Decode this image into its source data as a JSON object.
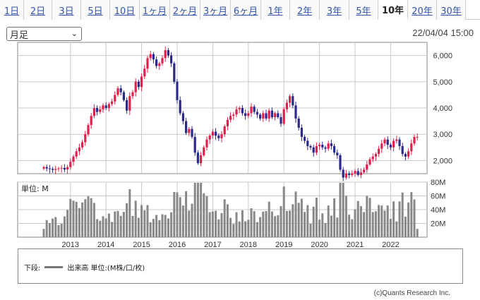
{
  "tabs": [
    {
      "label": "1日"
    },
    {
      "label": "2日"
    },
    {
      "label": "3日"
    },
    {
      "label": "5日"
    },
    {
      "label": "10日"
    },
    {
      "label": "1ヶ月"
    },
    {
      "label": "2ヶ月"
    },
    {
      "label": "3ヶ月"
    },
    {
      "label": "6ヶ月"
    },
    {
      "label": "1年"
    },
    {
      "label": "2年"
    },
    {
      "label": "3年"
    },
    {
      "label": "5年"
    },
    {
      "label": "10年"
    },
    {
      "label": "20年"
    },
    {
      "label": "30年"
    }
  ],
  "active_tab": "10年",
  "period_select": {
    "value": "月足"
  },
  "timestamp": "22/04/04 15:00",
  "legend": {
    "prefix": "下段:",
    "label": "出来高 単位:(M株/口/枚)"
  },
  "copyright": "(c)Quants Research Inc.",
  "colors": {
    "up": "#e0204c",
    "down": "#2a2a8c",
    "volume": "#888888",
    "grid": "#c8c8c8"
  },
  "chart_data": {
    "type": "candlestick",
    "x_tick_labels": [
      "2013",
      "2014",
      "2015",
      "2016",
      "2017",
      "2018",
      "2019",
      "2020",
      "2021",
      "2022"
    ],
    "price_axis": {
      "ticks": [
        "2,000",
        "3,000",
        "4,000",
        "5,000",
        "6,000"
      ],
      "ylim": [
        1500,
        6500
      ]
    },
    "volume_axis": {
      "unit_label": "単位: M",
      "ticks": [
        "20M",
        "40M",
        "60M",
        "80M"
      ],
      "ylim": [
        0,
        80
      ]
    },
    "start": "2012-04",
    "monthly_close": [
      1750,
      1700,
      1680,
      1640,
      1680,
      1700,
      1720,
      1660,
      1750,
      1950,
      2150,
      2350,
      2500,
      2700,
      3000,
      3350,
      3700,
      4000,
      3850,
      3950,
      4100,
      4000,
      4150,
      4250,
      4500,
      4750,
      4600,
      4300,
      3900,
      4450,
      4600,
      5000,
      4800,
      5200,
      5500,
      5900,
      6050,
      5850,
      5600,
      5700,
      5900,
      6200,
      6000,
      5700,
      5000,
      4300,
      3800,
      3500,
      3050,
      3200,
      2900,
      2300,
      1900,
      2200,
      2500,
      2800,
      2950,
      3100,
      2950,
      2850,
      3000,
      3300,
      3550,
      3700,
      3750,
      3950,
      4000,
      3800,
      3700,
      3800,
      4050,
      3850,
      3750,
      3600,
      3800,
      3600,
      3900,
      3650,
      3800,
      3650,
      3400,
      3950,
      4200,
      4450,
      4100,
      3600,
      3250,
      2900,
      2750,
      2550,
      2500,
      2300,
      2550,
      2600,
      2500,
      2450,
      2650,
      2550,
      2300,
      2200,
      1650,
      1350,
      1500,
      1450,
      1500,
      1600,
      1450,
      1550,
      1650,
      1850,
      2050,
      2150,
      2250,
      2450,
      2650,
      2800,
      2600,
      2500,
      2750,
      2800,
      2550,
      2250,
      2150,
      2350,
      2650,
      2900,
      2900
    ]
  }
}
